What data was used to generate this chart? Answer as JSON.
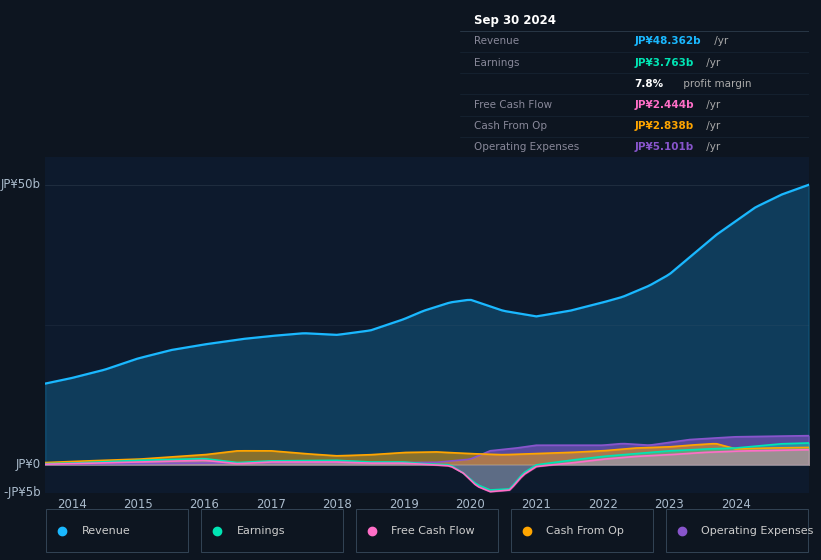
{
  "bg_color": "#0d1520",
  "plot_bg_color": "#0d1a2d",
  "revenue_color": "#1ab8ff",
  "earnings_color": "#00e5b4",
  "free_cash_flow_color": "#ff6ec7",
  "cash_from_op_color": "#ffa500",
  "operating_expenses_color": "#8855cc",
  "legend": [
    {
      "label": "Revenue",
      "color": "#1ab8ff"
    },
    {
      "label": "Earnings",
      "color": "#00e5b4"
    },
    {
      "label": "Free Cash Flow",
      "color": "#ff6ec7"
    },
    {
      "label": "Cash From Op",
      "color": "#ffa500"
    },
    {
      "label": "Operating Expenses",
      "color": "#8855cc"
    }
  ],
  "info_title": "Sep 30 2024",
  "info_rows": [
    {
      "label": "Revenue",
      "value": "JP¥48.362b /yr",
      "lcolor": "#888899",
      "vcolor": "#1ab8ff"
    },
    {
      "label": "Earnings",
      "value": "JP¥3.763b /yr",
      "lcolor": "#888899",
      "vcolor": "#00e5b4"
    },
    {
      "label": "",
      "value": "7.8% profit margin",
      "lcolor": "#888899",
      "vcolor": "#cccccc"
    },
    {
      "label": "Free Cash Flow",
      "value": "JP¥2.444b /yr",
      "lcolor": "#888899",
      "vcolor": "#ff6ec7"
    },
    {
      "label": "Cash From Op",
      "value": "JP¥2.838b /yr",
      "lcolor": "#888899",
      "vcolor": "#ffa500"
    },
    {
      "label": "Operating Expenses",
      "value": "JP¥5.101b /yr",
      "lcolor": "#888899",
      "vcolor": "#8855cc"
    }
  ],
  "ylim_min": -5,
  "ylim_max": 55,
  "xlim_min": 2013.6,
  "xlim_max": 2025.1,
  "y_label_50": "JP¥50b",
  "y_label_0": "JP¥0",
  "y_label_n5": "-JP¥5b",
  "xticks": [
    2014,
    2015,
    2016,
    2017,
    2018,
    2019,
    2020,
    2021,
    2022,
    2023,
    2024
  ],
  "rev_x": [
    2013.6,
    2014.0,
    2014.5,
    2015.0,
    2015.5,
    2016.0,
    2016.3,
    2016.6,
    2017.0,
    2017.5,
    2018.0,
    2018.5,
    2019.0,
    2019.3,
    2019.7,
    2020.0,
    2020.5,
    2021.0,
    2021.5,
    2022.0,
    2022.3,
    2022.7,
    2023.0,
    2023.3,
    2023.7,
    2024.0,
    2024.3,
    2024.7,
    2025.1
  ],
  "rev_y": [
    14.5,
    15.5,
    17.0,
    19.0,
    20.5,
    21.5,
    22.0,
    22.5,
    23.0,
    23.5,
    23.2,
    24.0,
    26.0,
    27.5,
    29.0,
    29.5,
    27.5,
    26.5,
    27.5,
    29.0,
    30.0,
    32.0,
    34.0,
    37.0,
    41.0,
    43.5,
    46.0,
    48.3,
    50.0
  ],
  "earn_x": [
    2013.6,
    2014.0,
    2015.0,
    2016.0,
    2016.5,
    2017.0,
    2018.0,
    2018.5,
    2019.0,
    2019.3,
    2019.7,
    2019.9,
    2020.1,
    2020.3,
    2020.6,
    2020.8,
    2021.0,
    2021.5,
    2022.0,
    2022.5,
    2023.0,
    2023.5,
    2024.0,
    2024.7,
    2025.1
  ],
  "earn_y": [
    0.2,
    0.3,
    0.8,
    1.1,
    0.4,
    0.7,
    0.8,
    0.5,
    0.5,
    0.2,
    0.0,
    -1.5,
    -3.5,
    -4.5,
    -4.3,
    -1.5,
    0.0,
    0.8,
    1.5,
    2.0,
    2.5,
    2.8,
    3.0,
    3.76,
    3.9
  ],
  "fcf_x": [
    2013.6,
    2014.0,
    2015.0,
    2016.0,
    2016.5,
    2017.0,
    2018.0,
    2018.5,
    2019.0,
    2019.3,
    2019.7,
    2019.9,
    2020.1,
    2020.3,
    2020.6,
    2020.8,
    2021.0,
    2021.5,
    2022.0,
    2022.5,
    2023.0,
    2023.5,
    2024.0,
    2024.7,
    2025.1
  ],
  "fcf_y": [
    0.1,
    0.2,
    0.5,
    0.8,
    0.2,
    0.5,
    0.5,
    0.3,
    0.3,
    0.1,
    -0.2,
    -1.5,
    -3.8,
    -4.8,
    -4.5,
    -1.8,
    -0.3,
    0.3,
    1.0,
    1.5,
    1.8,
    2.2,
    2.44,
    2.6,
    2.7
  ],
  "cop_x": [
    2013.6,
    2014.0,
    2015.0,
    2016.0,
    2016.5,
    2017.0,
    2017.5,
    2018.0,
    2018.5,
    2019.0,
    2019.5,
    2020.0,
    2020.5,
    2021.0,
    2021.5,
    2022.0,
    2022.5,
    2023.0,
    2023.3,
    2023.7,
    2024.0,
    2024.5,
    2025.1
  ],
  "cop_y": [
    0.4,
    0.6,
    1.0,
    1.8,
    2.5,
    2.5,
    2.0,
    1.6,
    1.8,
    2.2,
    2.3,
    2.0,
    1.8,
    2.0,
    2.2,
    2.5,
    3.0,
    3.2,
    3.5,
    3.8,
    2.838,
    3.0,
    3.1
  ],
  "opex_x": [
    2013.6,
    2014.0,
    2015.0,
    2016.0,
    2017.0,
    2018.0,
    2019.0,
    2019.5,
    2020.0,
    2020.3,
    2020.7,
    2021.0,
    2021.5,
    2022.0,
    2022.3,
    2022.7,
    2023.0,
    2023.3,
    2023.7,
    2024.0,
    2024.5,
    2025.1
  ],
  "opex_y": [
    0.1,
    0.15,
    0.2,
    0.3,
    0.4,
    0.45,
    0.4,
    0.45,
    1.0,
    2.5,
    3.0,
    3.5,
    3.5,
    3.5,
    3.8,
    3.5,
    4.0,
    4.5,
    4.8,
    5.0,
    5.1,
    5.2
  ]
}
